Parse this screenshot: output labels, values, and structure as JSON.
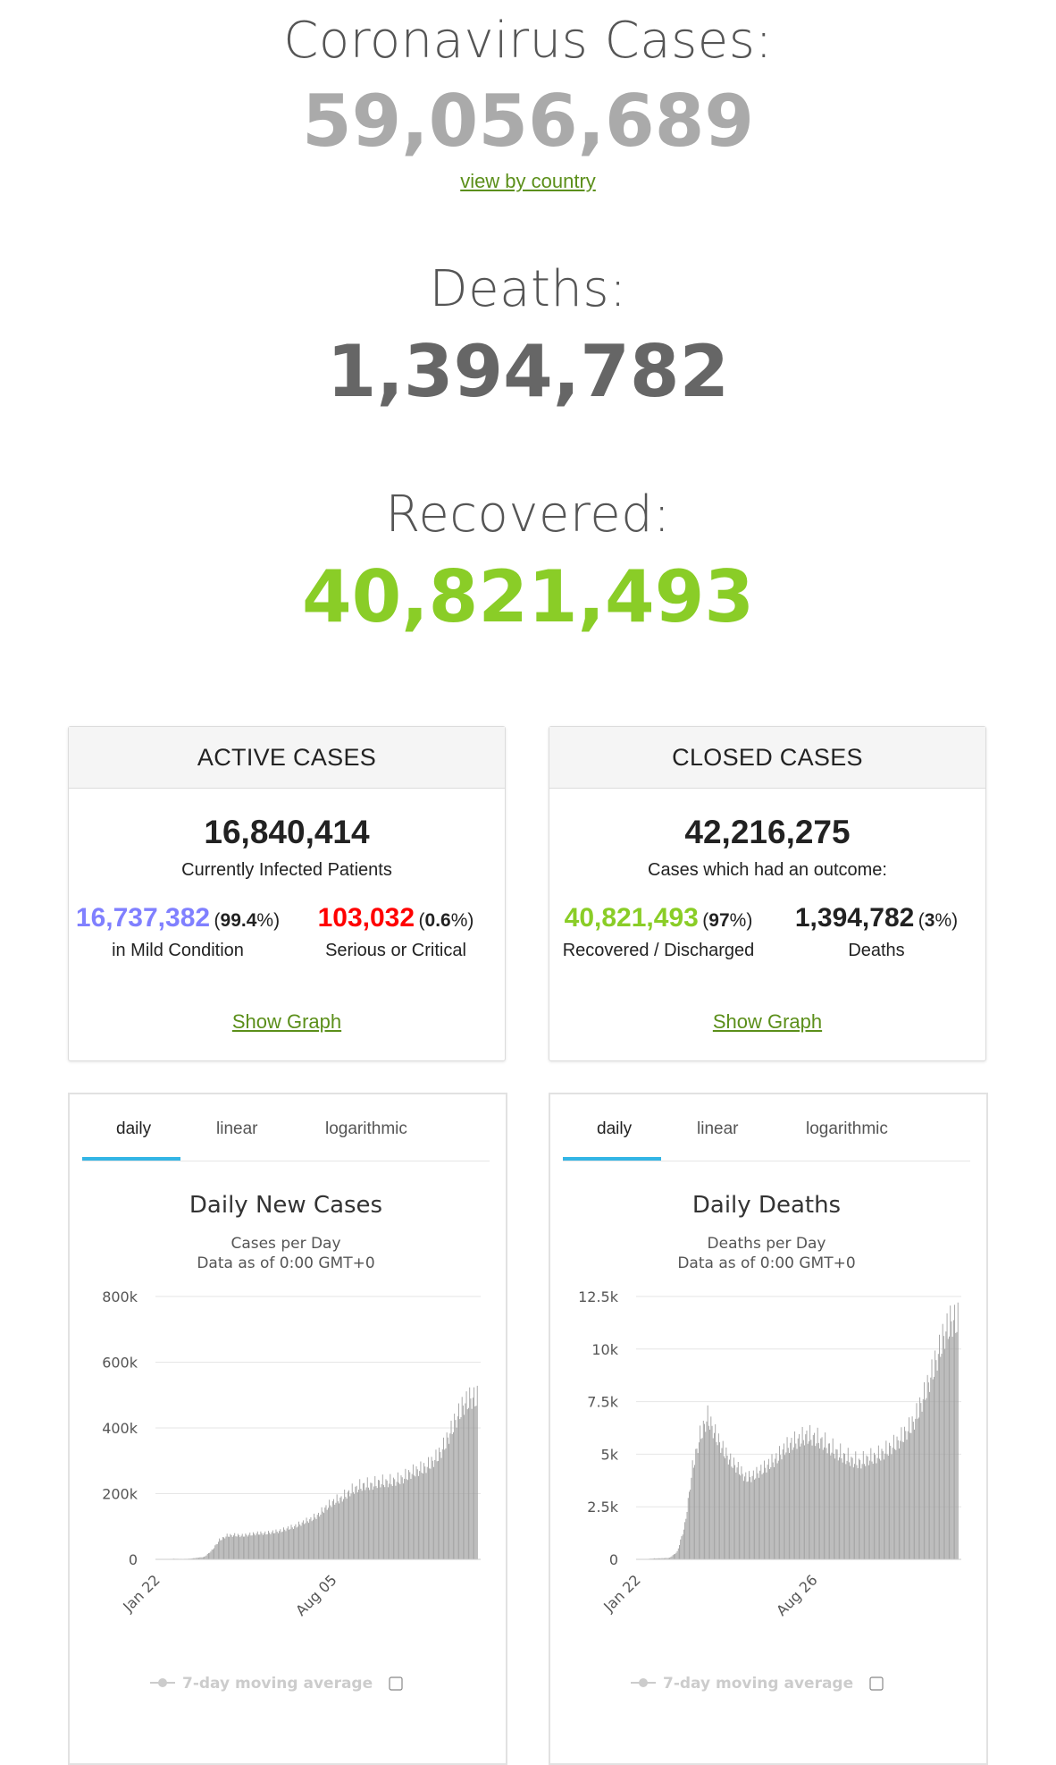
{
  "headline": {
    "cases_title": "Coronavirus Cases:",
    "cases_value": "59,056,689",
    "view_link": "view by country",
    "deaths_title": "Deaths:",
    "deaths_value": "1,394,782",
    "recovered_title": "Recovered:",
    "recovered_value": "40,821,493"
  },
  "colors": {
    "cases": "#aaaaaa",
    "deaths": "#666666",
    "recovered": "#8acd27",
    "mild": "#8080ff",
    "critical": "#ff0000",
    "link": "#5b8f1a",
    "tab_accent": "#33b5e5",
    "bars": "#a0a0a0"
  },
  "active_cases": {
    "heading": "ACTIVE CASES",
    "total": "16,840,414",
    "caption": "Currently Infected Patients",
    "mild_value": "16,737,382",
    "mild_pct_open": "(",
    "mild_pct": "99.4",
    "mild_pct_close": "%)",
    "mild_label": "in Mild Condition",
    "critical_value": "103,032",
    "critical_pct_open": "(",
    "critical_pct": "0.6",
    "critical_pct_close": "%)",
    "critical_label": "Serious or Critical",
    "show_graph": "Show Graph"
  },
  "closed_cases": {
    "heading": "CLOSED CASES",
    "total": "42,216,275",
    "caption": "Cases which had an outcome:",
    "recovered_value": "40,821,493",
    "recovered_pct_open": "(",
    "recovered_pct": "97",
    "recovered_pct_close": "%)",
    "recovered_label": "Recovered / Discharged",
    "deaths_value": "1,394,782",
    "deaths_pct_open": "(",
    "deaths_pct": "3",
    "deaths_pct_close": "%)",
    "deaths_label": "Deaths",
    "show_graph": "Show Graph"
  },
  "tabs": {
    "daily": "daily",
    "linear": "linear",
    "logarithmic": "logarithmic"
  },
  "chart_data": [
    {
      "type": "bar",
      "title": "Daily New Cases",
      "subtitle_line1": "Cases per Day",
      "subtitle_line2": "Data as of 0:00 GMT+0",
      "ylim": [
        0,
        800000
      ],
      "y_ticks": [
        "0",
        "200k",
        "400k",
        "600k",
        "800k"
      ],
      "x_tick_labels": [
        "Jan 22",
        "Aug 05"
      ],
      "x_start": "Jan 22",
      "x_end": "Nov 24",
      "grid": true,
      "legend": {
        "label": "7-day moving average",
        "checked": false
      },
      "weekly_values": [
        0,
        1000,
        2000,
        1500,
        2000,
        5000,
        8000,
        30000,
        65000,
        80000,
        82000,
        80000,
        84000,
        88000,
        88000,
        92000,
        96000,
        105000,
        112000,
        125000,
        135000,
        150000,
        175000,
        195000,
        205000,
        225000,
        240000,
        250000,
        250000,
        260000,
        260000,
        265000,
        272000,
        290000,
        300000,
        310000,
        330000,
        360000,
        410000,
        470000,
        520000,
        545000
      ]
    },
    {
      "type": "bar",
      "title": "Daily Deaths",
      "subtitle_line1": "Deaths per Day",
      "subtitle_line2": "Data as of 0:00 GMT+0",
      "ylim": [
        0,
        12500
      ],
      "y_ticks": [
        "0",
        "2.5k",
        "5k",
        "7.5k",
        "10k",
        "12.5k"
      ],
      "x_tick_labels": [
        "Jan 22",
        "Aug 26"
      ],
      "x_start": "Jan 22",
      "x_end": "Nov 24",
      "grid": true,
      "legend": {
        "label": "7-day moving average",
        "checked": false
      },
      "weekly_values": [
        0,
        20,
        50,
        60,
        80,
        400,
        1800,
        4800,
        6500,
        7500,
        6600,
        5800,
        5200,
        4800,
        4300,
        4400,
        4700,
        5000,
        5300,
        5800,
        6100,
        6300,
        6500,
        6400,
        6200,
        5900,
        5600,
        5400,
        5200,
        5100,
        5300,
        5400,
        5600,
        5900,
        6200,
        6700,
        7200,
        8200,
        9300,
        10500,
        11800,
        12600
      ]
    }
  ]
}
